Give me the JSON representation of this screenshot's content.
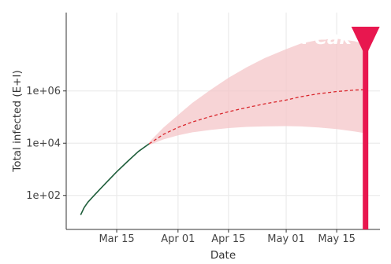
{
  "colors": {
    "observed": "#1f5e3b",
    "projection": "#d9262c",
    "ribbon": "#f4c6c8",
    "peak_marker": "#e8174f",
    "grid": "#ebebeb",
    "axis": "#333333"
  },
  "chart_data": {
    "type": "line",
    "title": "",
    "xlabel": "Date",
    "ylabel": "Total infected (E+I)",
    "x_axis": {
      "type": "date",
      "range": [
        "2020-03-01",
        "2020-05-27"
      ],
      "ticks": [
        "2020-03-15",
        "2020-04-01",
        "2020-04-15",
        "2020-05-01",
        "2020-05-15"
      ],
      "tick_labels": [
        "Mar 15",
        "Apr 01",
        "Apr 15",
        "May 01",
        "May 15"
      ]
    },
    "y_axis": {
      "scale": "log10",
      "range": [
        5,
        1000000000
      ],
      "ticks": [
        100,
        10000,
        1000000
      ],
      "tick_labels": [
        "1e+02",
        "1e+04",
        "1e+06"
      ]
    },
    "grid": true,
    "series": [
      {
        "style": "solid",
        "x": [
          "2020-03-05",
          "2020-03-06",
          "2020-03-07",
          "2020-03-09",
          "2020-03-12",
          "2020-03-15",
          "2020-03-18",
          "2020-03-21",
          "2020-03-24"
        ],
        "y": [
          18,
          35,
          55,
          110,
          300,
          800,
          2000,
          4800,
          9500
        ]
      },
      {
        "style": "dashed",
        "x": [
          "2020-03-24",
          "2020-03-28",
          "2020-04-01",
          "2020-04-05",
          "2020-04-10",
          "2020-04-15",
          "2020-04-20",
          "2020-04-25",
          "2020-05-01",
          "2020-05-05",
          "2020-05-10",
          "2020-05-15",
          "2020-05-20",
          "2020-05-23"
        ],
        "y": [
          9500,
          22000,
          40000,
          65000,
          105000,
          160000,
          230000,
          320000,
          450000,
          600000,
          780000,
          950000,
          1080000,
          1120000
        ]
      },
      {
        "style": "ribbon",
        "x": [
          "2020-03-24",
          "2020-03-28",
          "2020-04-01",
          "2020-04-05",
          "2020-04-10",
          "2020-04-15",
          "2020-04-20",
          "2020-04-25",
          "2020-05-01",
          "2020-05-05",
          "2020-05-10",
          "2020-05-15",
          "2020-05-20",
          "2020-05-23"
        ],
        "lower": [
          8500,
          14000,
          20000,
          26000,
          32000,
          38000,
          42000,
          44000,
          45000,
          44000,
          40000,
          35000,
          28000,
          24000
        ],
        "upper": [
          11000,
          40000,
          120000,
          350000,
          1100000,
          3200000,
          8000000,
          18000000,
          40000000,
          65000000,
          90000000,
          100000000,
          80000000,
          60000000
        ]
      }
    ],
    "annotations": [
      {
        "type": "peak_marker",
        "x": "2020-05-23",
        "label": "Peak"
      }
    ]
  }
}
